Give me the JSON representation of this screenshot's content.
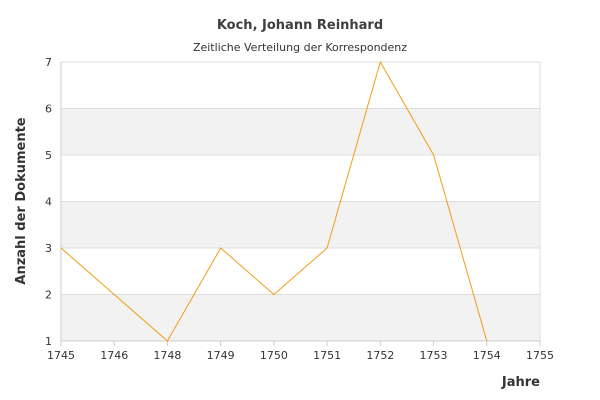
{
  "chart_data": {
    "type": "line",
    "title": "Koch, Johann Reinhard",
    "subtitle": "Zeitliche Verteilung der Korrespondenz",
    "xlabel": "Jahre",
    "ylabel": "Anzahl der Dokumente",
    "x_ticks": [
      "1745",
      "1746",
      "1748",
      "1749",
      "1750",
      "1751",
      "1752",
      "1753",
      "1754",
      "1755"
    ],
    "y_ticks": [
      "1",
      "2",
      "3",
      "4",
      "5",
      "6",
      "7"
    ],
    "ylim": [
      1,
      7
    ],
    "grid": true,
    "series": [
      {
        "color": "#f39c12",
        "x": [
          "1745",
          "1746",
          "1748",
          "1749",
          "1750",
          "1751",
          "1752",
          "1753",
          "1754"
        ],
        "values": [
          3,
          2,
          1,
          3,
          2,
          3,
          7,
          5,
          1
        ]
      }
    ]
  }
}
